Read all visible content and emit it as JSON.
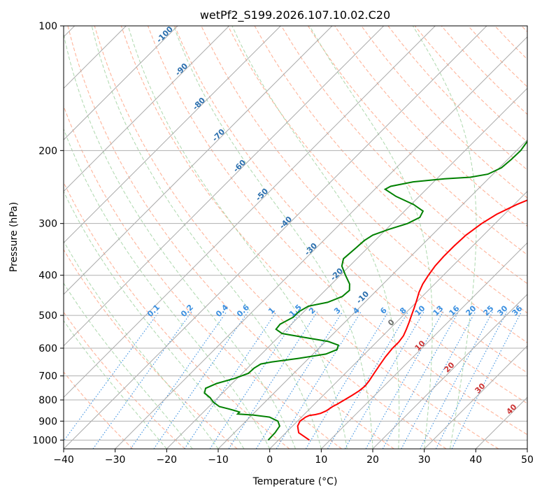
{
  "chart_data": {
    "type": "line",
    "chart_kind": "skew-t log-p",
    "title": "wetPf2_S199.2026.107.10.02.C20",
    "xlabel": "Temperature (°C)",
    "ylabel": "Pressure (hPa)",
    "xlim": [
      -40,
      50
    ],
    "ylim": [
      1050,
      100
    ],
    "y_scale": "log",
    "grid": true,
    "x_ticks": [
      "−40",
      "−30",
      "−20",
      "−10",
      "0",
      "10",
      "20",
      "30",
      "40",
      "50"
    ],
    "y_ticks": [
      "100",
      "200",
      "300",
      "400",
      "500",
      "600",
      "700",
      "800",
      "900",
      "1000"
    ],
    "series": [
      {
        "color": "#ff0000",
        "points": [
          [
            6.0,
            1000
          ],
          [
            2.5,
            960
          ],
          [
            1.0,
            925
          ],
          [
            0.5,
            900
          ],
          [
            0.8,
            880
          ],
          [
            1.2,
            872
          ],
          [
            2.2,
            868
          ],
          [
            3.0,
            862
          ],
          [
            3.6,
            850
          ],
          [
            4.0,
            830
          ],
          [
            4.4,
            820
          ],
          [
            5.0,
            800
          ],
          [
            5.6,
            780
          ],
          [
            6.1,
            760
          ],
          [
            6.3,
            740
          ],
          [
            6.1,
            720
          ],
          [
            5.6,
            690
          ],
          [
            5.1,
            660
          ],
          [
            4.6,
            630
          ],
          [
            4.3,
            600
          ],
          [
            4.3,
            580
          ],
          [
            4.0,
            560
          ],
          [
            3.3,
            540
          ],
          [
            2.5,
            520
          ],
          [
            1.6,
            500
          ],
          [
            0.7,
            480
          ],
          [
            -0.3,
            460
          ],
          [
            -1.4,
            440
          ],
          [
            -2.3,
            420
          ],
          [
            -2.9,
            400
          ],
          [
            -3.4,
            380
          ],
          [
            -3.6,
            360
          ],
          [
            -3.6,
            340
          ],
          [
            -3.4,
            320
          ],
          [
            -2.6,
            300
          ],
          [
            -1.5,
            285
          ],
          [
            0.5,
            270
          ],
          [
            2.4,
            260
          ],
          [
            4.5,
            250
          ],
          [
            5.6,
            240
          ],
          [
            6.1,
            230
          ],
          [
            6.6,
            220
          ],
          [
            7.2,
            210
          ],
          [
            7.6,
            200
          ],
          [
            8.2,
            190
          ],
          [
            8.7,
            180
          ],
          [
            9.6,
            170
          ],
          [
            10.4,
            160
          ],
          [
            11.2,
            150
          ],
          [
            12.3,
            140
          ],
          [
            13.0,
            130
          ],
          [
            14.4,
            120
          ],
          [
            15.6,
            110
          ],
          [
            16.6,
            100
          ]
        ]
      },
      {
        "color": "#008000",
        "points": [
          [
            -2.0,
            1000
          ],
          [
            -2.1,
            960
          ],
          [
            -2.5,
            925
          ],
          [
            -3.8,
            900
          ],
          [
            -6.2,
            880
          ],
          [
            -9.8,
            870
          ],
          [
            -13.0,
            865
          ],
          [
            -13.0,
            856
          ],
          [
            -14.0,
            850
          ],
          [
            -15.5,
            842
          ],
          [
            -18.0,
            830
          ],
          [
            -20.0,
            810
          ],
          [
            -21.5,
            790
          ],
          [
            -23.5,
            770
          ],
          [
            -24.2,
            750
          ],
          [
            -23.0,
            730
          ],
          [
            -20.5,
            710
          ],
          [
            -18.8,
            690
          ],
          [
            -18.7,
            670
          ],
          [
            -18.2,
            655
          ],
          [
            -16.5,
            648
          ],
          [
            -12.0,
            635
          ],
          [
            -7.5,
            620
          ],
          [
            -6.2,
            605
          ],
          [
            -6.8,
            590
          ],
          [
            -9.5,
            578
          ],
          [
            -15.0,
            565
          ],
          [
            -20.0,
            553
          ],
          [
            -22.0,
            540
          ],
          [
            -22.2,
            525
          ],
          [
            -21.0,
            505
          ],
          [
            -21.0,
            490
          ],
          [
            -20.2,
            475
          ],
          [
            -17.2,
            465
          ],
          [
            -15.5,
            450
          ],
          [
            -15.3,
            435
          ],
          [
            -16.5,
            420
          ],
          [
            -19.0,
            400
          ],
          [
            -21.5,
            380
          ],
          [
            -22.6,
            365
          ],
          [
            -22.3,
            345
          ],
          [
            -22.1,
            330
          ],
          [
            -21.5,
            320
          ],
          [
            -19.5,
            310
          ],
          [
            -17.0,
            300
          ],
          [
            -15.8,
            290
          ],
          [
            -16.4,
            280
          ],
          [
            -19.5,
            270
          ],
          [
            -24.5,
            258
          ],
          [
            -28.0,
            248
          ],
          [
            -27.5,
            244
          ],
          [
            -24.0,
            238
          ],
          [
            -18.5,
            234
          ],
          [
            -13.8,
            232
          ],
          [
            -11.0,
            228
          ],
          [
            -9.6,
            220
          ],
          [
            -9.3,
            210
          ],
          [
            -9.2,
            200
          ],
          [
            -9.7,
            190
          ],
          [
            -10.5,
            180
          ],
          [
            -11.6,
            170
          ],
          [
            -13.4,
            160
          ],
          [
            -16.0,
            150
          ],
          [
            -18.6,
            145
          ],
          [
            -20.0,
            140
          ],
          [
            -21.2,
            130
          ],
          [
            -22.0,
            120
          ],
          [
            -22.4,
            110
          ],
          [
            -22.5,
            100
          ]
        ]
      }
    ],
    "isotherm_labels": [
      "-100",
      "-90",
      "-80",
      "-70",
      "-60",
      "-50",
      "-40",
      "-30",
      "-20",
      "-10",
      "0",
      "10",
      "20",
      "30",
      "40"
    ],
    "mixing_ratio_labels": [
      "0.1",
      "0.2",
      "0.4",
      "0.6",
      "1",
      "1.5",
      "2",
      "3",
      "4",
      "6",
      "8",
      "10",
      "13",
      "16",
      "20",
      "25",
      "30",
      "36"
    ]
  }
}
